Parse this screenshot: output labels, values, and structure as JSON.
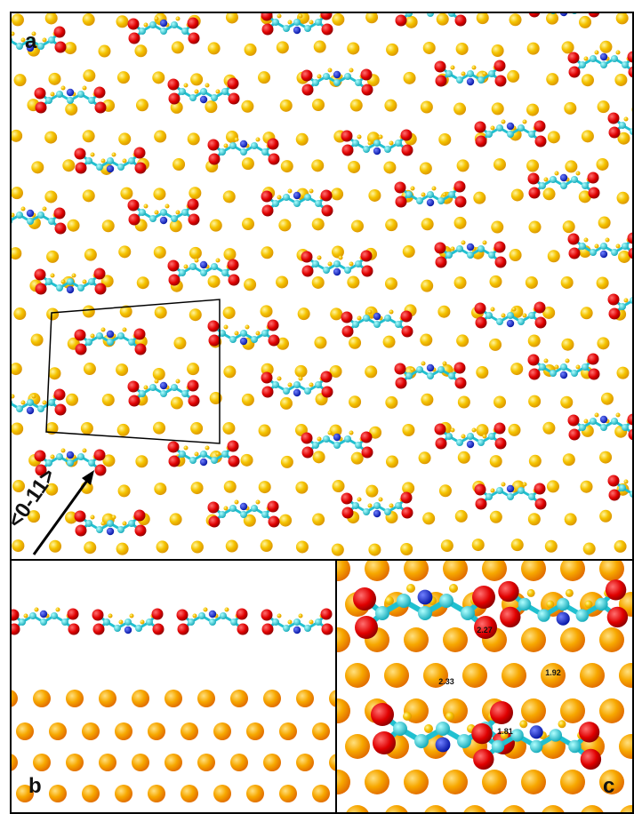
{
  "panels": {
    "a": {
      "label": "a",
      "direction_label": "<0-11>"
    },
    "b": {
      "label": "b"
    },
    "c": {
      "label": "c",
      "distances": [
        "2.27",
        "1.92",
        "2.33",
        "1.81"
      ]
    }
  }
}
